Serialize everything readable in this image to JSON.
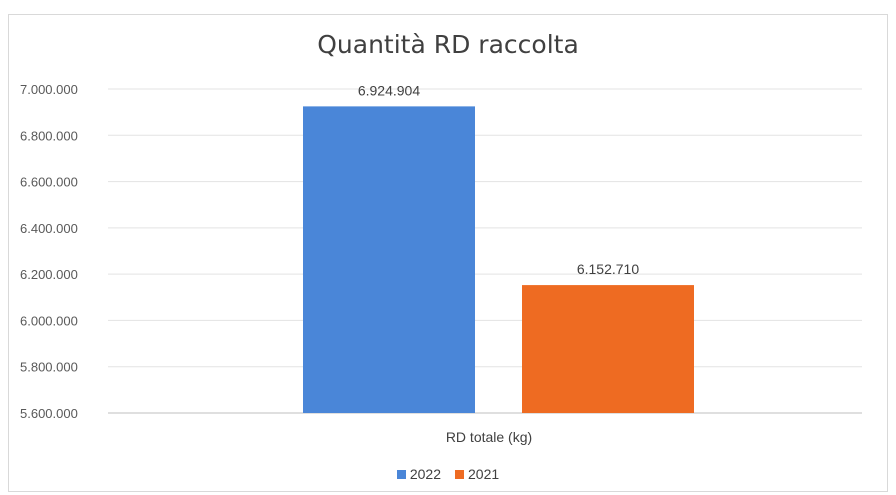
{
  "chart_data": {
    "type": "bar",
    "title": "Quantità RD raccolta",
    "categories": [
      "RD totale (kg)"
    ],
    "series": [
      {
        "name": "2022",
        "values": [
          6924904
        ],
        "label": "6.924.904",
        "color": "#4a86d8"
      },
      {
        "name": "2021",
        "values": [
          6152710
        ],
        "label": "6.152.710",
        "color": "#ee6b22"
      }
    ],
    "ylim": [
      5600000,
      7000000
    ],
    "yticks": [
      5600000,
      5800000,
      6000000,
      6200000,
      6400000,
      6600000,
      6800000,
      7000000
    ],
    "ytick_labels": [
      "5.600.000",
      "5.800.000",
      "6.000.000",
      "6.200.000",
      "6.400.000",
      "6.600.000",
      "6.800.000",
      "7.000.000"
    ],
    "grid": true,
    "legend": "bottom"
  }
}
